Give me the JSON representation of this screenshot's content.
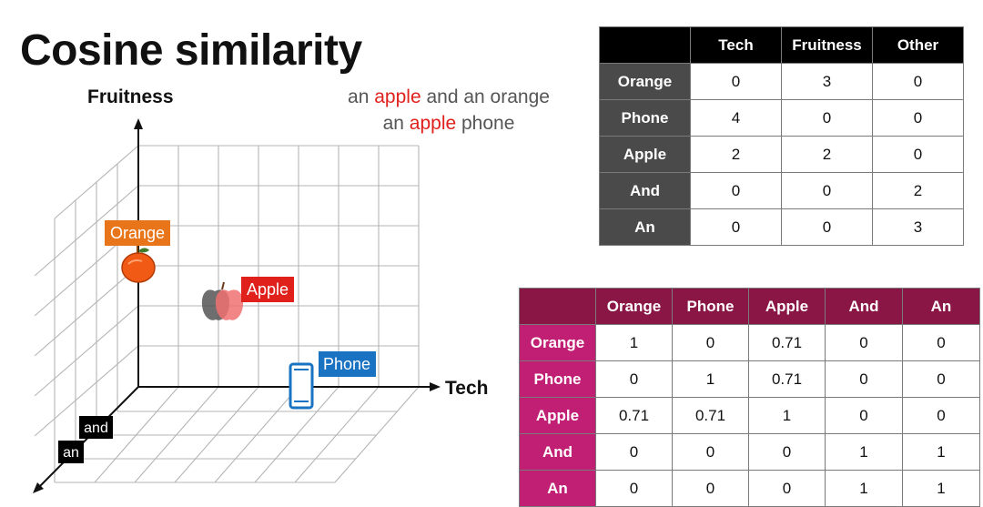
{
  "title": "Cosine similarity",
  "sentences": [
    {
      "before": "an ",
      "highlight": "apple",
      "after": " and an orange"
    },
    {
      "before": "an ",
      "highlight": "apple",
      "after": " phone"
    }
  ],
  "axes": {
    "y": "Fruitness",
    "x": "Tech"
  },
  "points": {
    "orange": "Orange",
    "apple": "Apple",
    "phone": "Phone",
    "and": "and",
    "an": "an"
  },
  "colors": {
    "orange_tag": "#e8751a",
    "apple_tag": "#e0201b",
    "phone_tag": "#1a73c2",
    "highlight": "#e0201b",
    "table2_header": "#8a1646",
    "table2_rowhead": "#c11f74"
  },
  "count_table": {
    "headers": [
      "",
      "Tech",
      "Fruitness",
      "Other"
    ],
    "rows": [
      {
        "label": "Orange",
        "values": [
          "0",
          "3",
          "0"
        ]
      },
      {
        "label": "Phone",
        "values": [
          "4",
          "0",
          "0"
        ]
      },
      {
        "label": "Apple",
        "values": [
          "2",
          "2",
          "0"
        ]
      },
      {
        "label": "And",
        "values": [
          "0",
          "0",
          "2"
        ]
      },
      {
        "label": "An",
        "values": [
          "0",
          "0",
          "3"
        ]
      }
    ]
  },
  "similarity_table": {
    "headers": [
      "",
      "Orange",
      "Phone",
      "Apple",
      "And",
      "An"
    ],
    "rows": [
      {
        "label": "Orange",
        "values": [
          "1",
          "0",
          "0.71",
          "0",
          "0"
        ]
      },
      {
        "label": "Phone",
        "values": [
          "0",
          "1",
          "0.71",
          "0",
          "0"
        ]
      },
      {
        "label": "Apple",
        "values": [
          "0.71",
          "0.71",
          "1",
          "0",
          "0"
        ]
      },
      {
        "label": "And",
        "values": [
          "0",
          "0",
          "0",
          "1",
          "1"
        ]
      },
      {
        "label": "An",
        "values": [
          "0",
          "0",
          "0",
          "1",
          "1"
        ]
      }
    ]
  }
}
